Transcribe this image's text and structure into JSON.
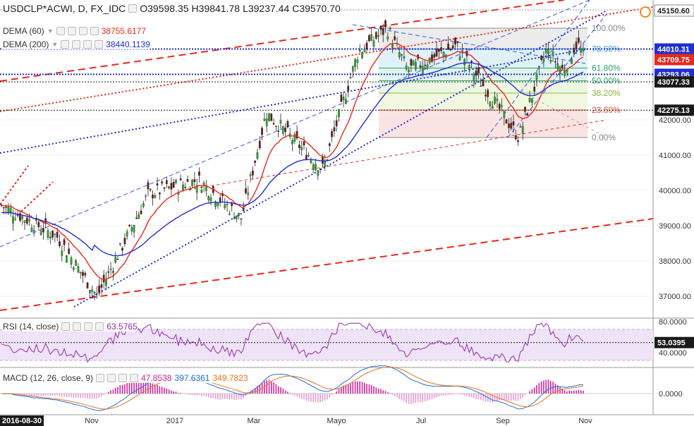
{
  "header": {
    "symbol_line": "USDCLP*ACWI, D, FX_IDC",
    "ohlc": {
      "o": "O39598.35",
      "h": "H39841.78",
      "l": "L39237.44",
      "c": "C39570.70"
    }
  },
  "legend": [
    {
      "label": "DEMA (60)",
      "value": "38755.6177",
      "color": "#e8291c"
    },
    {
      "label": "DEMA (200)",
      "value": "38440.1139",
      "color": "#1f2fd0"
    }
  ],
  "rsi_legend": {
    "label": "RSI (14, close)",
    "value": "63.5765",
    "color": "#8e2ea8"
  },
  "macd_legend": {
    "label": "MACD (12, 26, close, 9)",
    "values": [
      "47.8538",
      "397.6361",
      "349.7823"
    ],
    "colors": [
      "#d0259a",
      "#1f6fd8",
      "#e8731c"
    ]
  },
  "chart_data": {
    "type": "candlestick",
    "price_axis_ticks": [
      "42000.00",
      "41000.00",
      "40000.00",
      "39000.00",
      "38000.00",
      "37000.00"
    ],
    "price_labels": [
      {
        "text": "45150.60",
        "bg": "#ffffff",
        "fg": "#222222",
        "y": 45150.6
      },
      {
        "text": "44010.31",
        "bg": "#1f2fd0",
        "fg": "#ffffff",
        "y": 44010.31
      },
      {
        "text": "43709.75",
        "bg": "#e8291c",
        "fg": "#ffffff",
        "y": 43709.75
      },
      {
        "text": "43293.06",
        "bg": "#1f2fd0",
        "fg": "#ffffff",
        "y": 43293.06
      },
      {
        "text": "43077.33",
        "bg": "#1a1a1a",
        "fg": "#ffffff",
        "y": 43077.33
      },
      {
        "text": "42275.13",
        "bg": "#1a1a1a",
        "fg": "#ffffff",
        "y": 42275.13
      }
    ],
    "fib_levels": [
      {
        "label": "100.00%",
        "value": 44600,
        "color": "#888888"
      },
      {
        "label": "78.60%",
        "value": 44010,
        "color": "#3aa0d8"
      },
      {
        "label": "61.80%",
        "value": 43470,
        "color": "#2aa56a"
      },
      {
        "label": "50.00%",
        "value": 43110,
        "color": "#2aa56a"
      },
      {
        "label": "38.20%",
        "value": 42760,
        "color": "#8fb63a"
      },
      {
        "label": "23.60%",
        "value": 42280,
        "color": "#e84a3c"
      },
      {
        "label": "0.00%",
        "value": 41500,
        "color": "#888888"
      }
    ],
    "time_labels": [
      "Nov",
      "2017",
      "Mar",
      "Mayo",
      "Jul",
      "Sep",
      "Nov"
    ],
    "date_badge": "2016-08-30",
    "rsi_axis_ticks": [
      "80.0000",
      "40.0000"
    ],
    "rsi_last_label": "53.0395",
    "macd_axis_ticks": [
      "0.0000"
    ],
    "key_points": [
      {
        "date": "2016-08-30",
        "close": 39600
      },
      {
        "date": "2016-10-10",
        "close": 38700
      },
      {
        "date": "2016-11-08",
        "close": 37000
      },
      {
        "date": "2016-12-15",
        "close": 39900
      },
      {
        "date": "2017-01-20",
        "close": 40300
      },
      {
        "date": "2017-02-20",
        "close": 39200
      },
      {
        "date": "2017-03-10",
        "close": 42200
      },
      {
        "date": "2017-04-20",
        "close": 40600
      },
      {
        "date": "2017-05-15",
        "close": 43900
      },
      {
        "date": "2017-06-05",
        "close": 44600
      },
      {
        "date": "2017-06-20",
        "close": 43400
      },
      {
        "date": "2017-07-25",
        "close": 44100
      },
      {
        "date": "2017-08-25",
        "close": 42300
      },
      {
        "date": "2017-09-08",
        "close": 41500
      },
      {
        "date": "2017-09-28",
        "close": 44000
      },
      {
        "date": "2017-10-10",
        "close": 43400
      },
      {
        "date": "2017-10-20",
        "close": 44200
      },
      {
        "date": "2017-10-26",
        "close": 43700
      }
    ]
  }
}
